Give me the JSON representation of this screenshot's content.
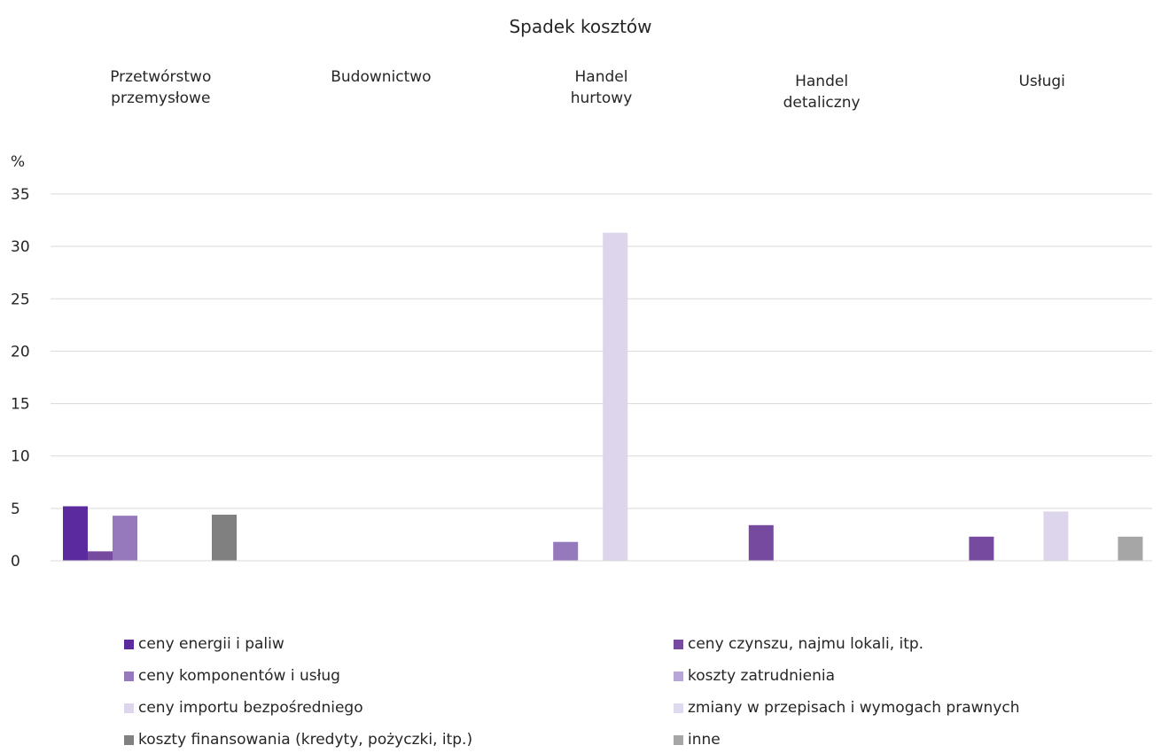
{
  "chart_data": {
    "type": "bar",
    "title": "Spadek kosztów",
    "ylabel": "%",
    "ylim": [
      0,
      35
    ],
    "yticks": [
      0,
      5,
      10,
      15,
      20,
      25,
      30,
      35
    ],
    "grid": true,
    "legend_position": "bottom",
    "categories": [
      [
        "Przetwórstwo",
        "przemysłowe"
      ],
      [
        "Budownictwo"
      ],
      [
        "Handel",
        "hurtowy"
      ],
      [
        "Handel",
        "detaliczny"
      ],
      [
        "Usługi"
      ]
    ],
    "series": [
      {
        "name": "ceny energii i paliw",
        "color": "#5b2a9d",
        "values": [
          5.2,
          0,
          0,
          0,
          0
        ]
      },
      {
        "name": "ceny czynszu, najmu lokali, itp.",
        "color": "#764a9f",
        "values": [
          0.9,
          0,
          0,
          3.4,
          2.3
        ]
      },
      {
        "name": "ceny komponentów i usług",
        "color": "#9678bd",
        "values": [
          4.3,
          0,
          1.8,
          0,
          0
        ]
      },
      {
        "name": "koszty zatrudnienia",
        "color": "#b9a6d8",
        "values": [
          0,
          0,
          0,
          0,
          0
        ]
      },
      {
        "name": "ceny importu bezpośredniego",
        "color": "#ddd5ec",
        "values": [
          0,
          0,
          31.3,
          0,
          4.7
        ]
      },
      {
        "name": "zmiany w przepisach i wymogach prawnych",
        "color": "#dedbf0",
        "values": [
          0,
          0,
          0,
          0,
          0
        ]
      },
      {
        "name": "koszty finansowania (kredyty, pożyczki, itp.)",
        "color": "#808080",
        "values": [
          4.4,
          0,
          0,
          0,
          0
        ]
      },
      {
        "name": "inne",
        "color": "#a6a6a6",
        "values": [
          0,
          0,
          0,
          0,
          2.3
        ]
      }
    ]
  }
}
